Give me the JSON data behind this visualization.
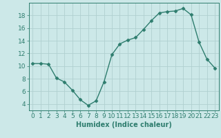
{
  "x": [
    0,
    1,
    2,
    3,
    4,
    5,
    6,
    7,
    8,
    9,
    10,
    11,
    12,
    13,
    14,
    15,
    16,
    17,
    18,
    19,
    20,
    21,
    22,
    23
  ],
  "y": [
    10.4,
    10.4,
    10.3,
    8.1,
    7.5,
    6.2,
    4.7,
    3.8,
    4.5,
    7.5,
    11.8,
    13.5,
    14.1,
    14.5,
    15.8,
    17.2,
    18.4,
    18.6,
    18.7,
    19.1,
    18.1,
    13.8,
    11.1,
    9.7
  ],
  "line_color": "#2e7d6e",
  "marker": "D",
  "marker_size": 2.5,
  "bg_color": "#cce8e8",
  "grid_color": "#b0d0d0",
  "xlabel": "Humidex (Indice chaleur)",
  "xlim": [
    -0.5,
    23.5
  ],
  "ylim": [
    3.0,
    20.0
  ],
  "yticks": [
    4,
    6,
    8,
    10,
    12,
    14,
    16,
    18
  ],
  "xticks": [
    0,
    1,
    2,
    3,
    4,
    5,
    6,
    7,
    8,
    9,
    10,
    11,
    12,
    13,
    14,
    15,
    16,
    17,
    18,
    19,
    20,
    21,
    22,
    23
  ],
  "tick_color": "#2e7d6e",
  "font_color": "#2e7d6e",
  "font_size": 6.5,
  "xlabel_fontsize": 7.0,
  "linewidth": 1.0
}
